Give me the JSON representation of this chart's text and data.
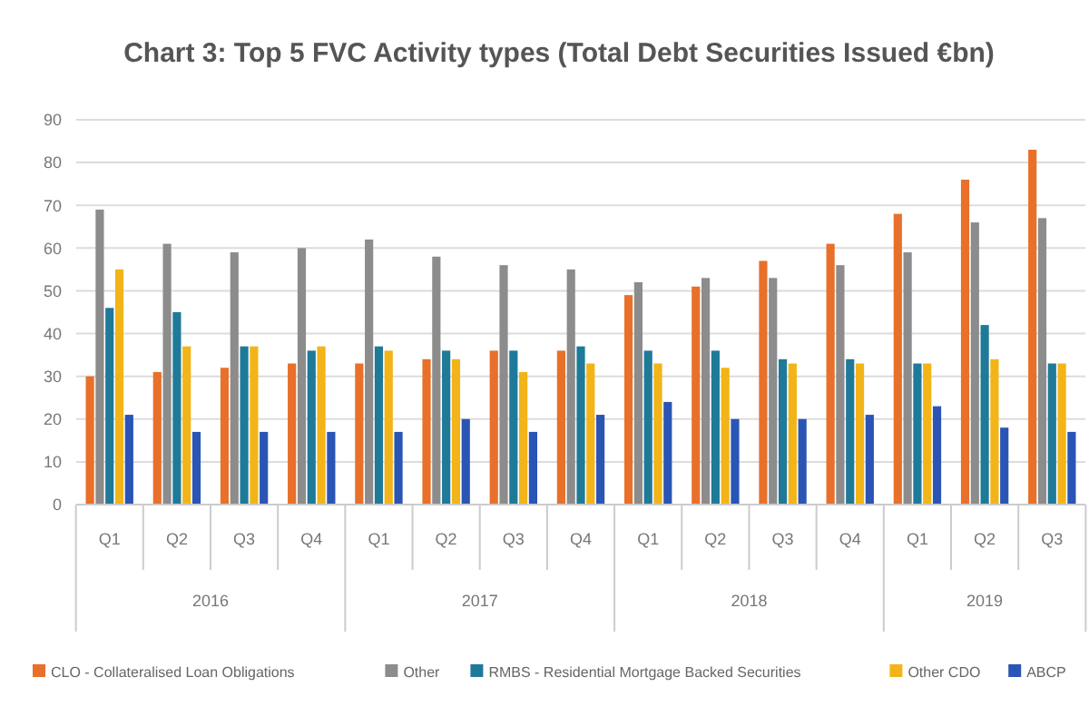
{
  "chart_data": {
    "type": "bar",
    "title": "Chart 3: Top 5 FVC Activity types (Total Debt Securities Issued €bn)",
    "categories": [
      "Q1",
      "Q2",
      "Q3",
      "Q4",
      "Q1",
      "Q2",
      "Q3",
      "Q4",
      "Q1",
      "Q2",
      "Q3",
      "Q4",
      "Q1",
      "Q2",
      "Q3"
    ],
    "annotations": [
      "2016",
      "2017",
      "2018",
      "2019"
    ],
    "series": [
      {
        "name": "CLO - Collateralised Loan Obligations",
        "color": "#e8702a",
        "values": [
          30,
          31,
          32,
          33,
          33,
          34,
          36,
          36,
          49,
          51,
          57,
          61,
          68,
          76,
          83
        ]
      },
      {
        "name": "Other",
        "color": "#8c8c8c",
        "values": [
          69,
          61,
          59,
          60,
          62,
          58,
          56,
          55,
          52,
          53,
          53,
          56,
          59,
          66,
          67
        ]
      },
      {
        "name": "RMBS - Residential Mortgage Backed Securities",
        "color": "#1f7a99",
        "values": [
          46,
          45,
          37,
          36,
          37,
          36,
          36,
          37,
          36,
          36,
          34,
          34,
          33,
          42,
          33
        ]
      },
      {
        "name": "Other CDO",
        "color": "#f2b418",
        "values": [
          55,
          37,
          37,
          37,
          36,
          34,
          31,
          33,
          33,
          32,
          33,
          33,
          33,
          34,
          33
        ]
      },
      {
        "name": "ABCP",
        "color": "#2a55b5",
        "values": [
          21,
          17,
          17,
          17,
          17,
          20,
          17,
          21,
          24,
          20,
          20,
          21,
          23,
          18,
          17
        ]
      }
    ],
    "ylim": [
      0,
      90
    ],
    "yticks": [
      0,
      10,
      20,
      30,
      40,
      50,
      60,
      70,
      80,
      90
    ],
    "grid": "y",
    "legend": "bottom"
  }
}
